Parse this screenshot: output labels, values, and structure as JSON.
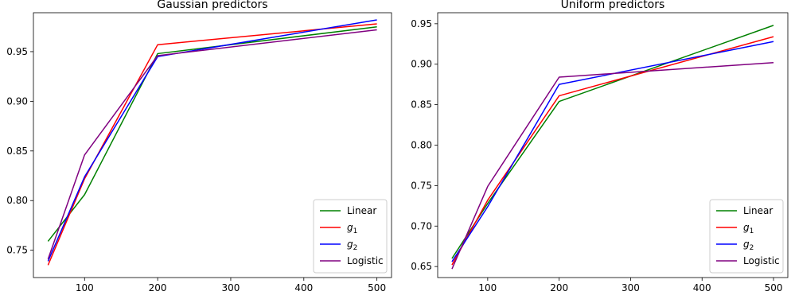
{
  "chart_data": [
    {
      "type": "line",
      "title": "Gaussian predictors",
      "xlabel": "",
      "ylabel": "",
      "x": [
        50,
        100,
        200,
        500
      ],
      "xlim": [
        30,
        520
      ],
      "ylim": [
        0.7225,
        0.9892
      ],
      "xticks": [
        100,
        200,
        300,
        400,
        500
      ],
      "yticks": [
        0.75,
        0.8,
        0.85,
        0.9,
        0.95
      ],
      "ytick_labels": [
        "0.75",
        "0.80",
        "0.85",
        "0.90",
        "0.95"
      ],
      "xtick_labels": [
        "100",
        "200",
        "300",
        "400",
        "500"
      ],
      "grid": false,
      "legend_position": "bottom-right",
      "series": [
        {
          "name": "Linear",
          "label_main": "Linear",
          "label_sub": "",
          "color": "#008000",
          "values": [
            0.759,
            0.806,
            0.948,
            0.975
          ]
        },
        {
          "name": "g1",
          "label_main": "g",
          "label_sub": "1",
          "color": "#ff0000",
          "values": [
            0.735,
            0.822,
            0.957,
            0.978
          ]
        },
        {
          "name": "g2",
          "label_main": "g",
          "label_sub": "2",
          "color": "#0000ff",
          "values": [
            0.739,
            0.824,
            0.945,
            0.982
          ]
        },
        {
          "name": "Logistic",
          "label_main": "Logistic",
          "label_sub": "",
          "color": "#800080",
          "values": [
            0.741,
            0.846,
            0.946,
            0.972
          ]
        }
      ]
    },
    {
      "type": "line",
      "title": "Uniform predictors",
      "xlabel": "",
      "ylabel": "",
      "x": [
        50,
        100,
        200,
        500
      ],
      "xlim": [
        30,
        520
      ],
      "ylim": [
        0.6364,
        0.9636
      ],
      "xticks": [
        100,
        200,
        300,
        400,
        500
      ],
      "yticks": [
        0.65,
        0.7,
        0.75,
        0.8,
        0.85,
        0.9,
        0.95
      ],
      "ytick_labels": [
        "0.65",
        "0.70",
        "0.75",
        "0.80",
        "0.85",
        "0.90",
        "0.95"
      ],
      "xtick_labels": [
        "100",
        "200",
        "300",
        "400",
        "500"
      ],
      "grid": false,
      "legend_position": "bottom-right",
      "series": [
        {
          "name": "Linear",
          "label_main": "Linear",
          "label_sub": "",
          "color": "#008000",
          "values": [
            0.66,
            0.728,
            0.854,
            0.948
          ]
        },
        {
          "name": "g1",
          "label_main": "g",
          "label_sub": "1",
          "color": "#ff0000",
          "values": [
            0.652,
            0.732,
            0.861,
            0.934
          ]
        },
        {
          "name": "g2",
          "label_main": "g",
          "label_sub": "2",
          "color": "#0000ff",
          "values": [
            0.656,
            0.724,
            0.875,
            0.928
          ]
        },
        {
          "name": "Logistic",
          "label_main": "Logistic",
          "label_sub": "",
          "color": "#800080",
          "values": [
            0.647,
            0.749,
            0.884,
            0.902
          ]
        }
      ]
    }
  ]
}
